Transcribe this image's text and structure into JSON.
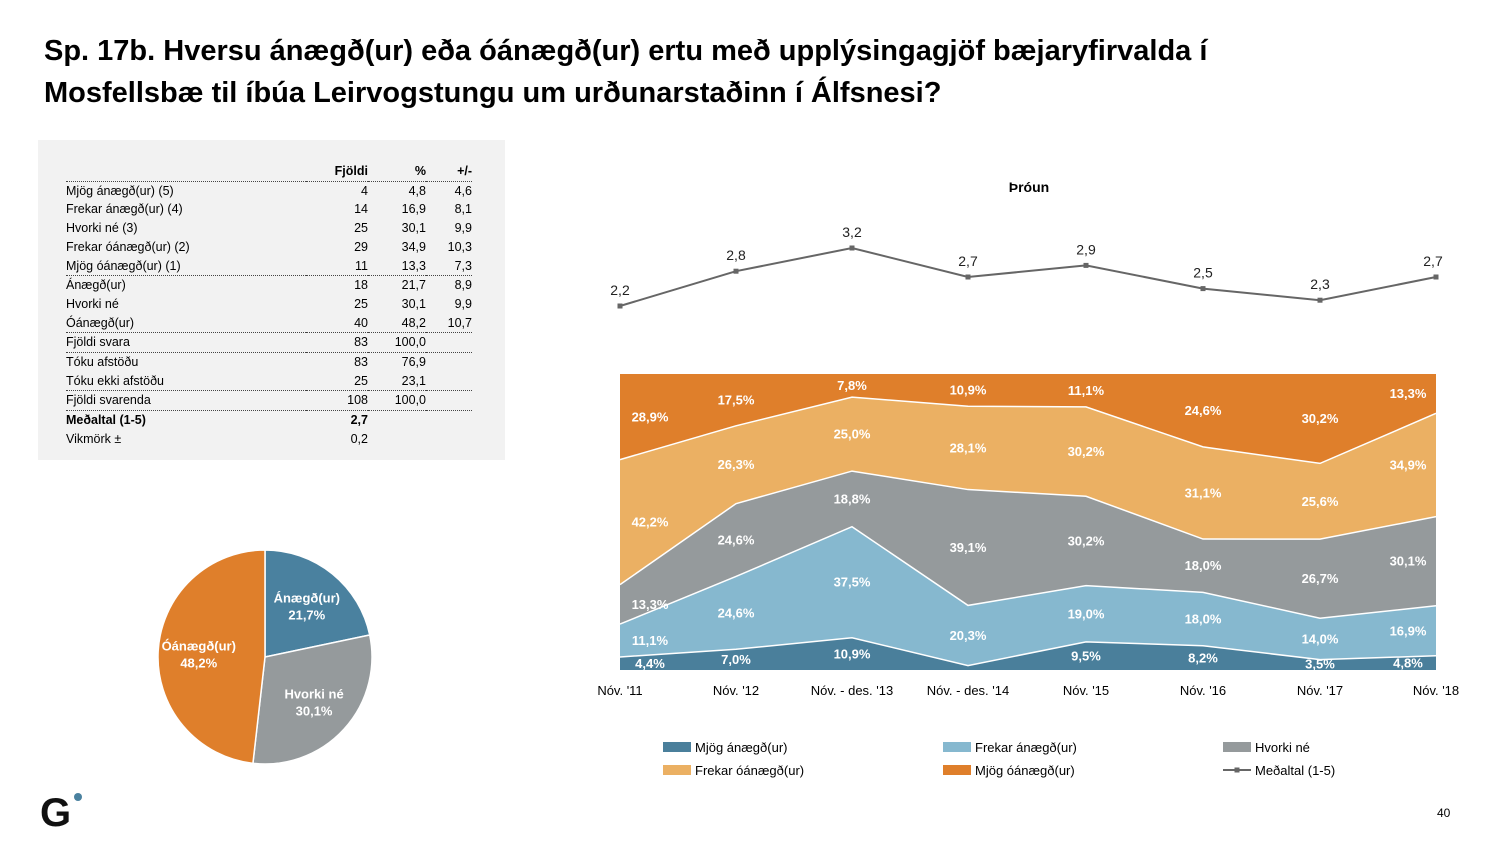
{
  "title": {
    "line1": "Sp. 17b. Hversu ánægð(ur) eða óánægð(ur) ertu með upplýsingagjöf bæjaryfirvalda í",
    "line2": "Mosfellsbæ til íbúa Leirvogstungu um urðunarstaðinn í Álfsnesi?"
  },
  "table": {
    "headers": [
      "Fjöldi",
      "%",
      "+/-"
    ],
    "rows": [
      {
        "label": "Mjög ánægð(ur) (5)",
        "n": "4",
        "pct": "4,8",
        "pm": "4,6"
      },
      {
        "label": "Frekar ánægð(ur) (4)",
        "n": "14",
        "pct": "16,9",
        "pm": "8,1"
      },
      {
        "label": "Hvorki né (3)",
        "n": "25",
        "pct": "30,1",
        "pm": "9,9"
      },
      {
        "label": "Frekar óánægð(ur) (2)",
        "n": "29",
        "pct": "34,9",
        "pm": "10,3"
      },
      {
        "label": "Mjög óánægð(ur) (1)",
        "n": "11",
        "pct": "13,3",
        "pm": "7,3"
      },
      {
        "label": "Ánægð(ur)",
        "n": "18",
        "pct": "21,7",
        "pm": "8,9"
      },
      {
        "label": "Hvorki né",
        "n": "25",
        "pct": "30,1",
        "pm": "9,9"
      },
      {
        "label": "Óánægð(ur)",
        "n": "40",
        "pct": "48,2",
        "pm": "10,7"
      },
      {
        "label": "Fjöldi svara",
        "n": "83",
        "pct": "100,0",
        "pm": ""
      },
      {
        "label": "Tóku afstöðu",
        "n": "83",
        "pct": "76,9",
        "pm": ""
      },
      {
        "label": "Tóku ekki afstöðu",
        "n": "25",
        "pct": "23,1",
        "pm": ""
      },
      {
        "label": "Fjöldi svarenda",
        "n": "108",
        "pct": "100,0",
        "pm": ""
      },
      {
        "label": "Meðaltal (1-5)",
        "n": "2,7",
        "pct": "",
        "pm": ""
      },
      {
        "label": "Vikmörk ±",
        "n": "0,2",
        "pct": "",
        "pm": ""
      }
    ]
  },
  "colors": {
    "mjog_anaegd": "#4a7f9b",
    "frekar_anaegd": "#86b8cf",
    "hvorki": "#959a9c",
    "frekar_oanaegd": "#ebb063",
    "mjog_oanaegd": "#df7f2b",
    "line": "#666666",
    "pie_anaegd": "#4a819f"
  },
  "chart_data": [
    {
      "type": "pie",
      "slices": [
        {
          "label": "Ánægð(ur)",
          "value": 21.7,
          "display": "21,7%",
          "color": "#4a819f"
        },
        {
          "label": "Hvorki né",
          "value": 30.1,
          "display": "30,1%",
          "color": "#959a9c"
        },
        {
          "label": "Óánægð(ur)",
          "value": 48.2,
          "display": "48,2%",
          "color": "#df7f2b"
        }
      ]
    },
    {
      "type": "area",
      "title": "Þróun",
      "categories": [
        "Nóv. '11",
        "Nóv. '12",
        "Nóv. - des. '13",
        "Nóv. - des. '14",
        "Nóv. '15",
        "Nóv. '16",
        "Nóv. '17",
        "Nóv. '18"
      ],
      "stacked_percent": true,
      "series": [
        {
          "name": "Mjög ánægð(ur)",
          "color": "#4a7f9b",
          "values": [
            4.4,
            7.0,
            10.9,
            1.5,
            9.5,
            8.2,
            3.5,
            4.8
          ],
          "labels": [
            "4,4%",
            "7,0%",
            "10,9%",
            "",
            "9,5%",
            "8,2%",
            "3,5%",
            "4,8%"
          ]
        },
        {
          "name": "Frekar ánægð(ur)",
          "color": "#86b8cf",
          "values": [
            11.1,
            24.6,
            37.5,
            20.3,
            19.0,
            18.0,
            14.0,
            16.9
          ],
          "labels": [
            "11,1%",
            "24,6%",
            "37,5%",
            "20,3%",
            "19,0%",
            "18,0%",
            "14,0%",
            "16,9%"
          ]
        },
        {
          "name": "Hvorki né",
          "color": "#959a9c",
          "values": [
            13.3,
            24.6,
            18.8,
            39.1,
            30.2,
            18.0,
            26.7,
            30.1
          ],
          "labels": [
            "13,3%",
            "24,6%",
            "18,8%",
            "39,1%",
            "30,2%",
            "18,0%",
            "26,7%",
            "30,1%"
          ]
        },
        {
          "name": "Frekar óánægð(ur)",
          "color": "#ebb063",
          "values": [
            42.2,
            26.3,
            25.0,
            28.1,
            30.2,
            31.1,
            25.6,
            34.9
          ],
          "labels": [
            "42,2%",
            "26,3%",
            "25,0%",
            "28,1%",
            "30,2%",
            "31,1%",
            "25,6%",
            "34,9%"
          ]
        },
        {
          "name": "Mjög óánægð(ur)",
          "color": "#df7f2b",
          "values": [
            28.9,
            17.5,
            7.8,
            10.9,
            11.1,
            24.6,
            30.2,
            13.3
          ],
          "labels": [
            "28,9%",
            "17,5%",
            "7,8%",
            "10,9%",
            "11,1%",
            "24,6%",
            "30,2%",
            "13,3%"
          ]
        }
      ],
      "line_series": {
        "name": "Meðaltal (1-5)",
        "color": "#666666",
        "values": [
          2.2,
          2.8,
          3.2,
          2.7,
          2.9,
          2.5,
          2.3,
          2.7
        ],
        "labels": [
          "2,2",
          "2,8",
          "3,2",
          "2,7",
          "2,9",
          "2,5",
          "2,3",
          "2,7"
        ]
      },
      "legend": [
        "Mjög ánægð(ur)",
        "Frekar ánægð(ur)",
        "Hvorki né",
        "Frekar óánægð(ur)",
        "Mjög óánægð(ur)",
        "Meðaltal (1-5)"
      ],
      "legend_position": "bottom"
    }
  ],
  "logo_text": "G",
  "page_number": "40"
}
